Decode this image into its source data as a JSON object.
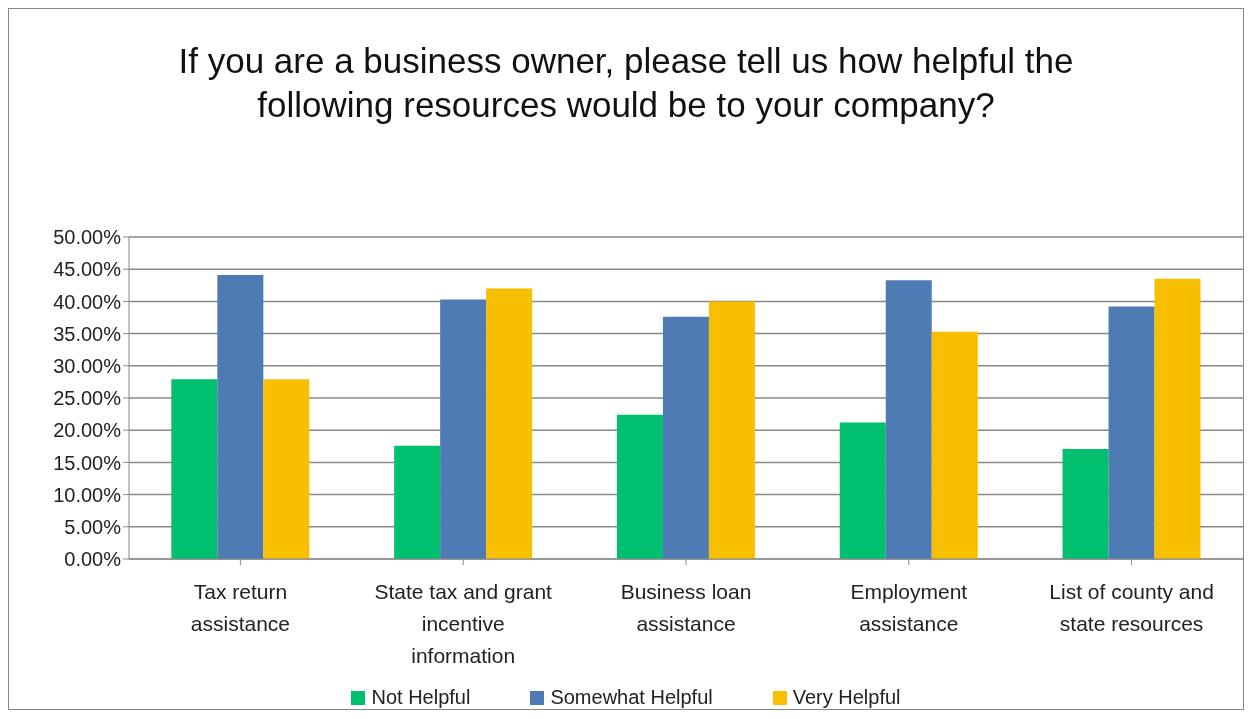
{
  "chart_data": {
    "type": "bar",
    "title": "If you are a business owner, please tell us how helpful the following resources would be to your company?",
    "categories": [
      "Tax return assistance",
      "State tax and grant incentive information",
      "Business loan assistance",
      "Employment assistance",
      "List of county and state resources"
    ],
    "series": [
      {
        "name": "Not Helpful",
        "color": "#00bf6f",
        "values": [
          27.9,
          17.6,
          22.4,
          21.2,
          17.1
        ]
      },
      {
        "name": "Somewhat Helpful",
        "color": "#4f7bb5",
        "values": [
          44.1,
          40.3,
          37.6,
          43.3,
          39.2
        ]
      },
      {
        "name": "Very Helpful",
        "color": "#f8be00",
        "values": [
          27.9,
          42.0,
          40.0,
          35.3,
          43.5
        ]
      }
    ],
    "ylim": [
      0,
      50
    ],
    "yticks": [
      {
        "value": 0,
        "label": "0.00%"
      },
      {
        "value": 5,
        "label": "5.00%"
      },
      {
        "value": 10,
        "label": "10.00%"
      },
      {
        "value": 15,
        "label": "15.00%"
      },
      {
        "value": 20,
        "label": "20.00%"
      },
      {
        "value": 25,
        "label": "25.00%"
      },
      {
        "value": 30,
        "label": "30.00%"
      },
      {
        "value": 35,
        "label": "35.00%"
      },
      {
        "value": 40,
        "label": "40.00%"
      },
      {
        "value": 45,
        "label": "45.00%"
      },
      {
        "value": 50,
        "label": "50.00%"
      }
    ],
    "grid": "y",
    "legend": "bottom"
  }
}
